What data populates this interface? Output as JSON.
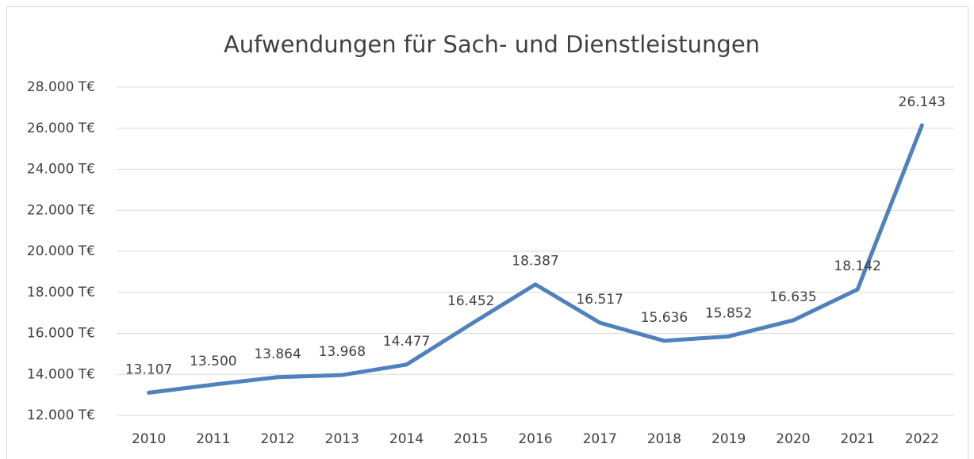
{
  "chart_data": {
    "type": "line",
    "title": "Aufwendungen für Sach- und Dienstleistungen",
    "categories": [
      "2010",
      "2011",
      "2012",
      "2013",
      "2014",
      "2015",
      "2016",
      "2017",
      "2018",
      "2019",
      "2020",
      "2021",
      "2022"
    ],
    "series": [
      {
        "name": "Aufwendungen",
        "color": "#4f81bd",
        "values": [
          13107,
          13500,
          13864,
          13968,
          14477,
          16452,
          18387,
          16517,
          15636,
          15852,
          16635,
          18142,
          26143
        ],
        "value_labels": [
          "13.107",
          "13.500",
          "13.864",
          "13.968",
          "14.477",
          "16.452",
          "18.387",
          "16.517",
          "15.636",
          "15.852",
          "16.635",
          "18.142",
          "26.143"
        ]
      }
    ],
    "ylim": [
      12000,
      28000
    ],
    "yticks": [
      {
        "value": 12000,
        "label": "12.000 T€"
      },
      {
        "value": 14000,
        "label": "14.000 T€"
      },
      {
        "value": 16000,
        "label": "16.000 T€"
      },
      {
        "value": 18000,
        "label": "18.000 T€"
      },
      {
        "value": 20000,
        "label": "20.000 T€"
      },
      {
        "value": 22000,
        "label": "22.000 T€"
      },
      {
        "value": 24000,
        "label": "24.000 T€"
      },
      {
        "value": 26000,
        "label": "26.000 T€"
      },
      {
        "value": 28000,
        "label": "28.000 T€"
      }
    ],
    "grid": true
  }
}
